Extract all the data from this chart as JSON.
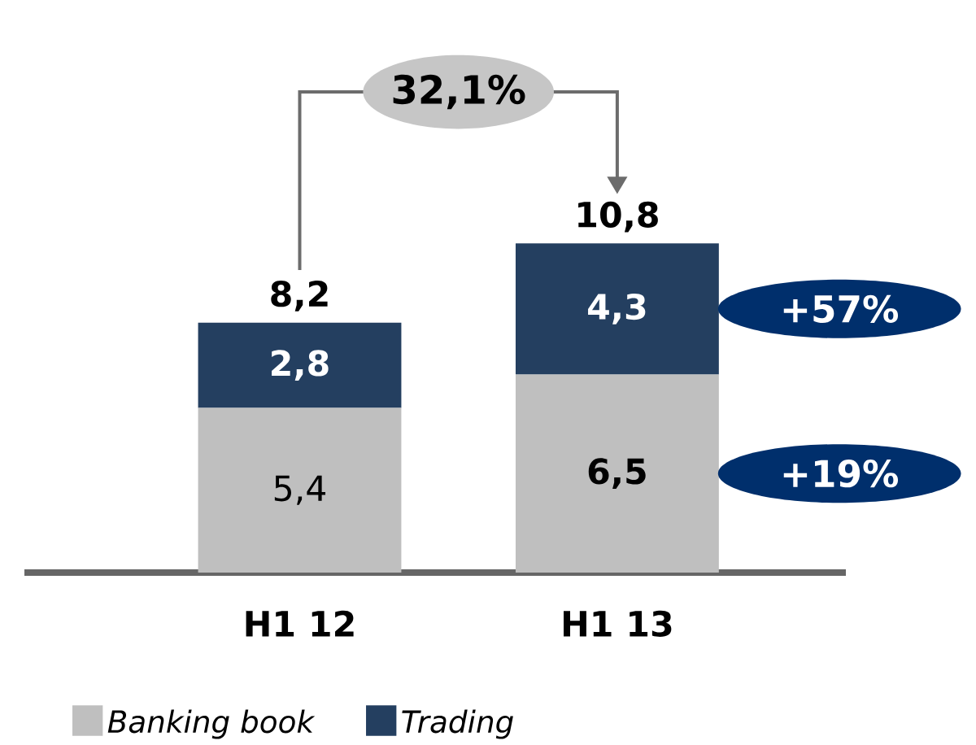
{
  "chart_data": {
    "type": "bar",
    "stacked": true,
    "categories": [
      "H1 12",
      "H1 13"
    ],
    "series": [
      {
        "name": "Banking book",
        "color": "#bfbfbf",
        "values": [
          5.4,
          6.5
        ],
        "value_labels": [
          "5,4",
          "6,5"
        ]
      },
      {
        "name": "Trading",
        "color": "#243f60",
        "values": [
          2.8,
          4.3
        ],
        "value_labels": [
          "2,8",
          "4,3"
        ]
      }
    ],
    "totals": [
      "8,2",
      "10,8"
    ],
    "annotations": [
      "32,1%",
      "+57%",
      "+19%"
    ],
    "legend": "bottom"
  }
}
